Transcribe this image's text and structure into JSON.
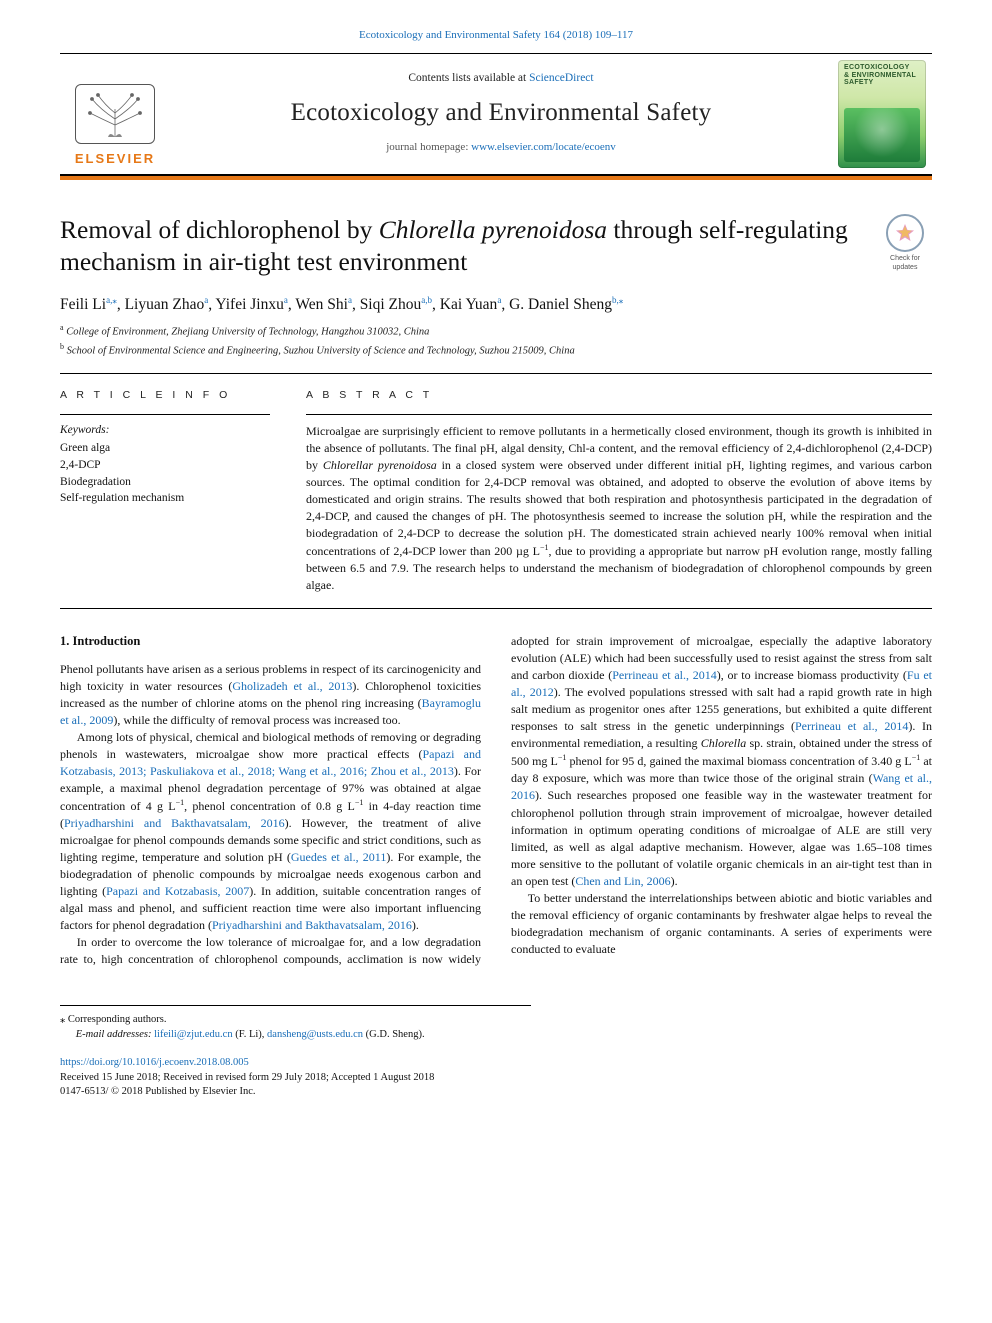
{
  "running_head": "Ecotoxicology and Environmental Safety 164 (2018) 109–117",
  "masthead": {
    "contents_prefix": "Contents lists available at ",
    "contents_link": "ScienceDirect",
    "journal_name": "Ecotoxicology and Environmental Safety",
    "homepage_prefix": "journal homepage: ",
    "homepage_link": "www.elsevier.com/locate/ecoenv",
    "publisher_wordmark": "ELSEVIER",
    "cover_label_line1": "ECOTOXICOLOGY",
    "cover_label_line2": "& ENVIRONMENTAL",
    "cover_label_line3": "SAFETY",
    "colors": {
      "orange": "#e67817",
      "link": "#1a6eb8",
      "cover_grad_top": "#dff0c6",
      "cover_grad_bottom": "#2f8f4a"
    }
  },
  "updates_badge": {
    "line1": "Check for",
    "line2": "updates"
  },
  "title": {
    "pre": "Removal of dichlorophenol by ",
    "italic": "Chlorella pyrenoidosa",
    "post": " through self-regulating mechanism in air-tight test environment"
  },
  "authors": [
    {
      "name": "Feili Li",
      "affs": "a",
      "corr": true
    },
    {
      "name": "Liyuan Zhao",
      "affs": "a",
      "corr": false
    },
    {
      "name": "Yifei Jinxu",
      "affs": "a",
      "corr": false
    },
    {
      "name": "Wen Shi",
      "affs": "a",
      "corr": false
    },
    {
      "name": "Siqi Zhou",
      "affs": "a,b",
      "corr": false
    },
    {
      "name": "Kai Yuan",
      "affs": "a",
      "corr": false
    },
    {
      "name": "G. Daniel Sheng",
      "affs": "b",
      "corr": true
    }
  ],
  "affiliations": [
    {
      "key": "a",
      "text": "College of Environment, Zhejiang University of Technology, Hangzhou 310032, China"
    },
    {
      "key": "b",
      "text": "School of Environmental Science and Engineering, Suzhou University of Science and Technology, Suzhou 215009, China"
    }
  ],
  "article_info": {
    "head": "A R T I C L E  I N F O",
    "kw_label": "Keywords:",
    "keywords": [
      "Green alga",
      "2,4-DCP",
      "Biodegradation",
      "Self-regulation mechanism"
    ]
  },
  "abstract": {
    "head": "A B S T R A C T",
    "text_pre": "Microalgae are surprisingly efficient to remove pollutants in a hermetically closed environment, though its growth is inhibited in the absence of pollutants. The final pH, algal density, Chl-a content, and the removal efficiency of 2,4-dichlorophenol (2,4-DCP) by ",
    "text_italic": "Chlorellar pyrenoidosa",
    "text_post1": " in a closed system were observed under different initial pH, lighting regimes, and various carbon sources. The optimal condition for 2,4-DCP removal was obtained, and adopted to observe the evolution of above items by domesticated and origin strains. The results showed that both respiration and photosynthesis participated in the degradation of 2,4-DCP, and caused the changes of pH. The photosynthesis seemed to increase the solution pH, while the respiration and the biodegradation of 2,4-DCP to decrease the solution pH. The domesticated strain achieved nearly 100% removal when initial concentrations of 2,4-DCP lower than 200 µg L",
    "text_sup1": "−1",
    "text_post2": ", due to providing a appropriate but narrow pH evolution range, mostly falling between 6.5 and 7.9. The research helps to understand the mechanism of biodegradation of chlorophenol compounds by green algae."
  },
  "body": {
    "h_intro": "1. Introduction",
    "p1a": "Phenol pollutants have arisen as a serious problems in respect of its carcinogenicity and high toxicity in water resources (",
    "p1ref1": "Gholizadeh et al., 2013",
    "p1b": "). Chlorophenol toxicities increased as the number of chlorine atoms on the phenol ring increasing (",
    "p1ref2": "Bayramoglu et al., 2009",
    "p1c": "), while the difficulty of removal process was increased too.",
    "p2a": "Among lots of physical, chemical and biological methods of removing or degrading phenols in wastewaters, microalgae show more practical effects (",
    "p2ref1": "Papazi and Kotzabasis, 2013; Paskuliakova et al., 2018; Wang et al., 2016; Zhou et al., 2013",
    "p2b": "). For example, a maximal phenol degradation percentage of 97% was obtained at algae concentration of 4 g L",
    "p2sup1": "−1",
    "p2c": ", phenol concentration of 0.8 g L",
    "p2sup2": "−1",
    "p2d": " in 4-day reaction time (",
    "p2ref2": "Priyadharshini and Bakthavatsalam, 2016",
    "p2e": "). However, the treatment of alive microalgae for phenol compounds demands some specific and strict conditions, such as lighting regime, temperature and solution pH (",
    "p2ref3": "Guedes et al., 2011",
    "p2f": "). For example, the biodegradation of phenolic compounds by microalgae needs exogenous carbon and lighting (",
    "p2ref4": "Papazi and Kotzabasis, 2007",
    "p2g": "). In addition, suitable concentration ranges of algal mass and phenol, and sufficient reaction time were also important influencing factors for phenol degradation (",
    "p2ref5": "Priyadharshini and Bakthavatsalam, 2016",
    "p2h": ").",
    "p3a": "In order to overcome the low tolerance of microalgae for, and a low",
    "p4a": "degradation rate to, high concentration of chlorophenol compounds, acclimation is now widely adopted for strain improvement of microalgae, especially the adaptive laboratory evolution (ALE) which had been successfully used to resist against the stress from salt and carbon dioxide (",
    "p4ref1": "Perrineau et al., 2014",
    "p4b": "), or to increase biomass productivity (",
    "p4ref2": "Fu et al., 2012",
    "p4c": "). The evolved populations stressed with salt had a rapid growth rate in high salt medium as progenitor ones after 1255 generations, but exhibited a quite different responses to salt stress in the genetic underpinnings (",
    "p4ref3": "Perrineau et al., 2014",
    "p4d": "). In environmental remediation, a resulting ",
    "p4ital": "Chlorella",
    "p4e": " sp. strain, obtained under the stress of 500 mg L",
    "p4sup1": "−1",
    "p4f": " phenol for 95 d, gained the maximal biomass concentration of 3.40 g L",
    "p4sup2": "−1",
    "p4g": " at day 8 exposure, which was more than twice those of the original strain (",
    "p4ref4": "Wang et al., 2016",
    "p4h": "). Such researches proposed one feasible way in the wastewater treatment for chlorophenol pollution through strain improvement of microalgae, however detailed information in optimum operating conditions of microalgae of ALE are still very limited, as well as algal adaptive mechanism. However, algae was 1.65–108 times more sensitive to the pollutant of volatile organic chemicals in an air-tight test than in an open test (",
    "p4ref5": "Chen and Lin, 2006",
    "p4i": ").",
    "p5": "To better understand the interrelationships between abiotic and biotic variables and the removal efficiency of organic contaminants by freshwater algae helps to reveal the biodegradation mechanism of organic contaminants. A series of experiments were conducted to evaluate"
  },
  "footnotes": {
    "corr_label": "Corresponding authors.",
    "email_label": "E-mail addresses: ",
    "email1": "lifeili@zjut.edu.cn",
    "email1_who": " (F. Li), ",
    "email2": "dansheng@usts.edu.cn",
    "email2_who": " (G.D. Sheng)."
  },
  "doi": {
    "link": "https://doi.org/10.1016/j.ecoenv.2018.08.005",
    "history": "Received 15 June 2018; Received in revised form 29 July 2018; Accepted 1 August 2018",
    "issn_copy": "0147-6513/ © 2018 Published by Elsevier Inc."
  }
}
